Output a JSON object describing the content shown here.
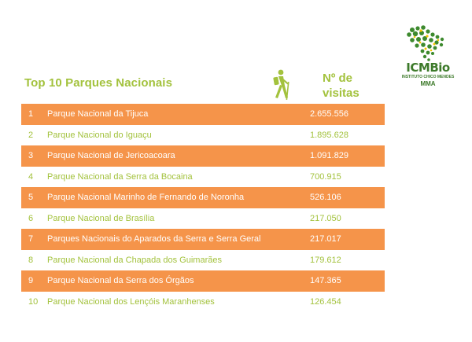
{
  "header": {
    "title": "Top 10 Parques Nacionais",
    "visits_header_line1": "Nº de",
    "visits_header_line2": "visitas"
  },
  "logo": {
    "name": "ICMBio",
    "subtitle": "INSTITUTO CHICO MENDES",
    "ministry": "MMA"
  },
  "icons": {
    "hiker": "hiker-icon",
    "map": "brazil-map-icon"
  },
  "colors": {
    "accent": "#a3c23d",
    "row_highlight": "#f5944a",
    "logo_green": "#3d7a2a"
  },
  "parks": [
    {
      "rank": "1",
      "name": "Parque Nacional da Tijuca",
      "visits": "2.655.556"
    },
    {
      "rank": "2",
      "name": "Parque Nacional do Iguaçu",
      "visits": "1.895.628"
    },
    {
      "rank": "3",
      "name": "Parque Nacional de Jericoacoara",
      "visits": "1.091.829"
    },
    {
      "rank": "4",
      "name": "Parque Nacional da Serra da Bocaina",
      "visits": "700.915"
    },
    {
      "rank": "5",
      "name": "Parque Nacional Marinho de Fernando de Noronha",
      "visits": "526.106"
    },
    {
      "rank": "6",
      "name": "Parque Nacional de Brasília",
      "visits": "217.050"
    },
    {
      "rank": "7",
      "name": "Parques Nacionais do Aparados da Serra e Serra Geral",
      "visits": "217.017"
    },
    {
      "rank": "8",
      "name": "Parque Nacional da Chapada dos Guimarães",
      "visits": "179.612"
    },
    {
      "rank": "9",
      "name": "Parque Nacional da Serra dos Órgãos",
      "visits": "147.365"
    },
    {
      "rank": "10",
      "name": "Parque Nacional dos Lençóis Maranhenses",
      "visits": "126.454"
    }
  ]
}
